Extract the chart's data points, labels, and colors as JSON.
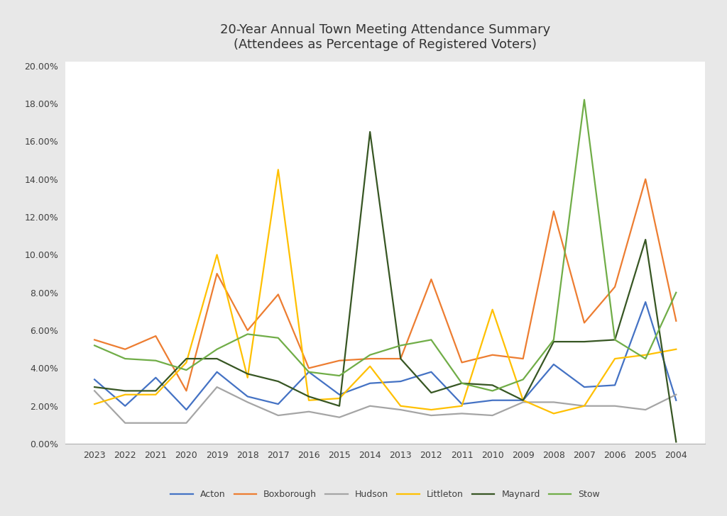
{
  "title": "20-Year Annual Town Meeting Attendance Summary\n(Attendees as Percentage of Registered Voters)",
  "years": [
    2023,
    2022,
    2021,
    2020,
    2019,
    2018,
    2017,
    2016,
    2015,
    2014,
    2013,
    2012,
    2011,
    2010,
    2009,
    2008,
    2007,
    2006,
    2005,
    2004
  ],
  "series": {
    "Acton": [
      3.4,
      2.0,
      3.5,
      1.8,
      3.8,
      2.5,
      2.1,
      3.8,
      2.6,
      3.2,
      3.3,
      3.8,
      2.1,
      2.3,
      2.3,
      4.2,
      3.0,
      3.1,
      7.5,
      2.3
    ],
    "Boxborough": [
      5.5,
      5.0,
      5.7,
      2.8,
      9.0,
      6.0,
      7.9,
      4.0,
      4.4,
      4.5,
      4.5,
      8.7,
      4.3,
      4.7,
      4.5,
      12.3,
      6.4,
      8.3,
      14.0,
      6.5
    ],
    "Hudson": [
      2.8,
      1.1,
      1.1,
      1.1,
      3.0,
      2.2,
      1.5,
      1.7,
      1.4,
      2.0,
      1.8,
      1.5,
      1.6,
      1.5,
      2.2,
      2.2,
      2.0,
      2.0,
      1.8,
      2.6
    ],
    "Littleton": [
      2.1,
      2.6,
      2.6,
      4.3,
      10.0,
      3.5,
      14.5,
      2.3,
      2.4,
      4.1,
      2.0,
      1.8,
      2.0,
      7.1,
      2.3,
      1.6,
      2.0,
      4.5,
      4.7,
      5.0
    ],
    "Maynard": [
      3.0,
      2.8,
      2.8,
      4.5,
      4.5,
      3.7,
      3.3,
      2.5,
      2.0,
      16.5,
      4.5,
      2.7,
      3.2,
      3.1,
      2.3,
      5.4,
      5.4,
      5.5,
      10.8,
      0.1
    ],
    "Stow": [
      5.2,
      4.5,
      4.4,
      3.9,
      5.0,
      5.8,
      5.6,
      3.8,
      3.6,
      4.7,
      5.2,
      5.5,
      3.2,
      2.8,
      3.4,
      5.5,
      18.2,
      5.5,
      4.5,
      8.0
    ]
  },
  "colors": {
    "Acton": "#4472C4",
    "Boxborough": "#ED7D31",
    "Hudson": "#A5A5A5",
    "Littleton": "#FFC000",
    "Maynard": "#375623",
    "Stow": "#70AD47"
  },
  "ylim": [
    0.0,
    20.0
  ],
  "ytick_step": 2.0,
  "outer_bg": "#E8E8E8",
  "plot_bg": "#FFFFFF",
  "grid_color": "#FFFFFF",
  "title_fontsize": 13,
  "tick_fontsize": 9,
  "legend_fontsize": 9,
  "linewidth": 1.6
}
